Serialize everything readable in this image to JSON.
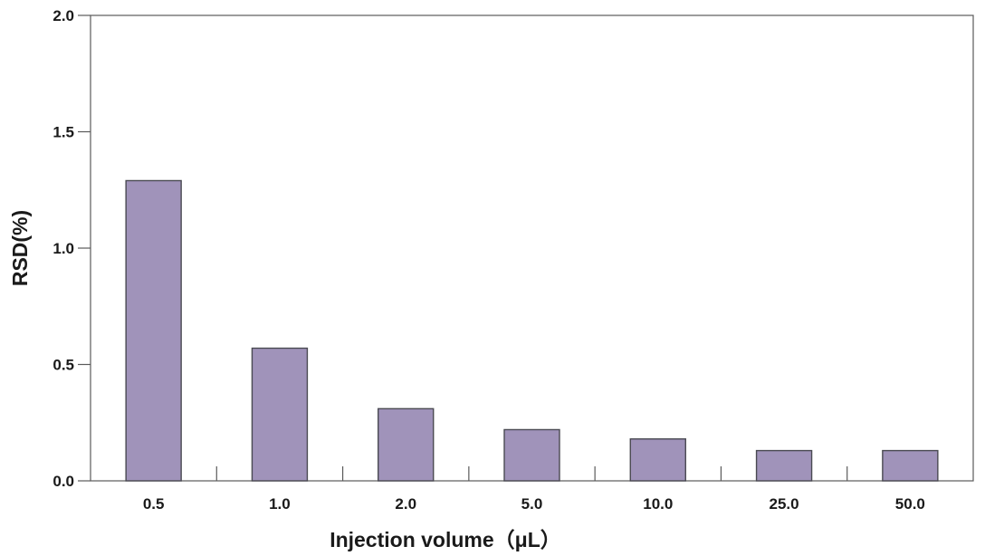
{
  "chart_data": {
    "type": "bar",
    "title": "",
    "xlabel": "Injection volume（μL）",
    "ylabel": "RSD(%)",
    "categories": [
      "0.5",
      "1.0",
      "2.0",
      "5.0",
      "10.0",
      "25.0",
      "50.0"
    ],
    "values": [
      1.29,
      0.57,
      0.31,
      0.22,
      0.18,
      0.13,
      0.13
    ],
    "ylim": [
      0,
      2.0
    ],
    "yticks": [
      "0.0",
      "0.5",
      "1.0",
      "1.5",
      "2.0"
    ],
    "ytick_values": [
      0,
      0.5,
      1.0,
      1.5,
      2.0
    ],
    "grid": false,
    "bar_color": "#a093ba",
    "bar_edge_color": "#4a4a52"
  }
}
